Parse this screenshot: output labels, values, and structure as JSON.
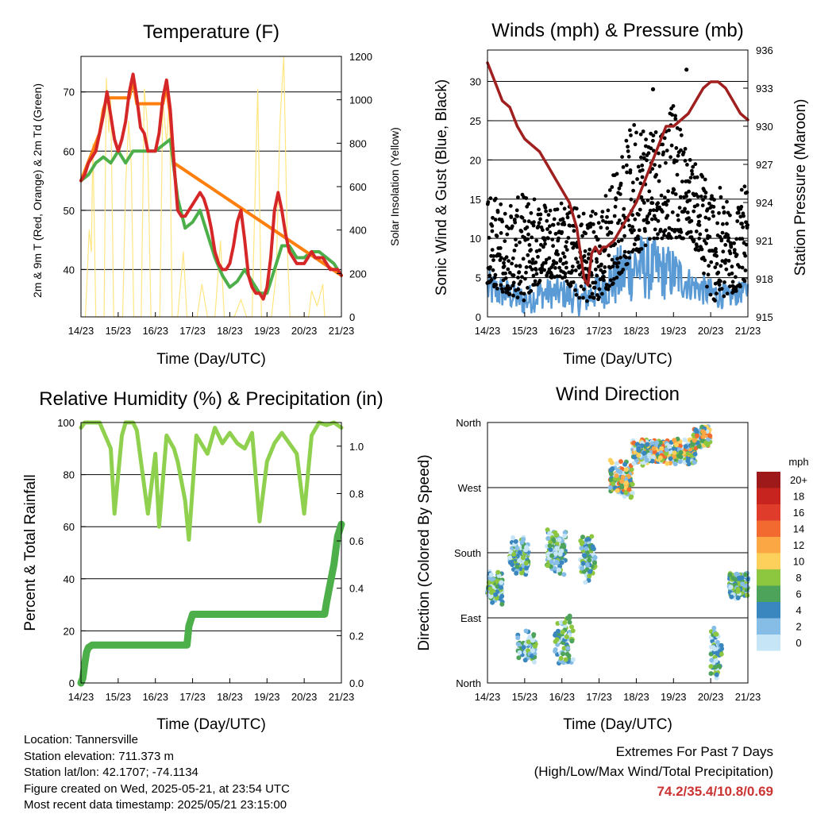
{
  "chart_data": [
    {
      "type": "line",
      "title": "Temperature (F)",
      "xlabel": "Time (Day/UTC)",
      "ylabel": "2m & 9m T (Red, Orange) & 2m Td (Green)",
      "y2label": "Solar Insolation (Yellow)",
      "x_ticks": [
        "14/23",
        "15/23",
        "16/23",
        "17/23",
        "18/23",
        "19/23",
        "20/23",
        "21/23"
      ],
      "ylim": [
        32,
        76
      ],
      "y_ticks": [
        40,
        50,
        60,
        70
      ],
      "y2lim": [
        0,
        1200
      ],
      "y2_ticks": [
        0,
        200,
        400,
        600,
        800,
        1000,
        1200
      ],
      "grid": "horizontal",
      "series": [
        {
          "key": "t2m",
          "color": "#d62728",
          "x": [
            0,
            0.1,
            0.2,
            0.3,
            0.4,
            0.5,
            0.6,
            0.7,
            0.8,
            0.9,
            1,
            1.1,
            1.2,
            1.3,
            1.4,
            1.5,
            1.6,
            1.7,
            1.8,
            1.9,
            2,
            2.1,
            2.2,
            2.3,
            2.4,
            2.5,
            2.6,
            2.7,
            2.8,
            2.9,
            3,
            3.1,
            3.2,
            3.3,
            3.4,
            3.5,
            3.6,
            3.7,
            3.8,
            3.9,
            4,
            4.1,
            4.2,
            4.3,
            4.4,
            4.5,
            4.6,
            4.7,
            4.8,
            4.9,
            5,
            5.1,
            5.2,
            5.3,
            5.4,
            5.5,
            5.6,
            5.7,
            5.8,
            5.9,
            6,
            6.1,
            6.2,
            6.3,
            6.4,
            6.5,
            6.6,
            6.7,
            6.8,
            6.9,
            7
          ],
          "y": [
            55,
            56,
            58,
            59,
            60,
            63,
            66,
            70,
            66,
            62,
            60,
            62,
            65,
            70,
            73,
            69,
            64,
            63,
            60,
            60,
            60,
            63,
            69,
            72,
            67,
            58,
            50,
            49,
            49,
            50,
            51,
            52,
            53,
            52,
            50,
            47,
            43,
            41,
            40,
            40,
            41,
            44,
            48,
            50,
            45,
            39,
            37,
            36,
            36,
            35,
            37,
            42,
            50,
            53,
            50,
            46,
            43,
            42,
            41,
            41,
            41,
            42,
            43,
            42,
            42,
            42,
            41,
            40,
            40,
            40,
            39
          ]
        },
        {
          "key": "t9m",
          "color": "#ff7f0e",
          "x": [
            0,
            0.5,
            0.6,
            0.7,
            1.3,
            1.4,
            1.5,
            2.2,
            2.3,
            2.4,
            2.5,
            7
          ],
          "y": [
            55,
            63,
            67,
            69,
            69,
            72,
            68,
            68,
            71,
            66,
            58,
            39
          ]
        },
        {
          "key": "td2m",
          "color": "#4daf4a",
          "x": [
            0,
            0.2,
            0.4,
            0.6,
            0.8,
            1,
            1.2,
            1.4,
            1.6,
            1.8,
            2,
            2.2,
            2.4,
            2.6,
            2.8,
            3,
            3.2,
            3.4,
            3.6,
            3.8,
            4,
            4.2,
            4.4,
            4.6,
            4.8,
            5,
            5.2,
            5.4,
            5.6,
            5.8,
            6,
            6.2,
            6.4,
            6.6,
            6.8,
            7
          ],
          "y": [
            55,
            56,
            58,
            59,
            58,
            60,
            58,
            60,
            60,
            60,
            60,
            61,
            62,
            52,
            47,
            48,
            50,
            46,
            42,
            39,
            37,
            38,
            40,
            38,
            36,
            36,
            40,
            44,
            44,
            42,
            42,
            43,
            43,
            42,
            41,
            39
          ]
        },
        {
          "key": "solar",
          "color": "#ffe680",
          "x": [
            0.12,
            0.22,
            0.28,
            0.32,
            0.4,
            0.62,
            0.68,
            0.75,
            0.8,
            0.88,
            1.12,
            1.2,
            1.28,
            1.35,
            1.42,
            1.62,
            1.7,
            1.78,
            1.88,
            2.12,
            2.2,
            2.3,
            2.38,
            2.45,
            2.6,
            2.75,
            2.85,
            3.12,
            3.25,
            3.4,
            3.6,
            3.75,
            3.85,
            4.12,
            4.3,
            4.45,
            4.6,
            4.75,
            4.85,
            5.12,
            5.25,
            5.35,
            5.45,
            5.55,
            5.62,
            6.12,
            6.2,
            6.35,
            6.5,
            6.55
          ],
          "y": [
            0,
            400,
            300,
            800,
            0,
            0,
            1100,
            850,
            1000,
            0,
            0,
            600,
            900,
            700,
            0,
            0,
            1050,
            900,
            0,
            0,
            1000,
            800,
            1000,
            0,
            0,
            300,
            0,
            0,
            150,
            0,
            0,
            350,
            0,
            0,
            80,
            0,
            0,
            1050,
            0,
            0,
            200,
            900,
            1200,
            300,
            0,
            0,
            120,
            50,
            150,
            0
          ]
        }
      ]
    },
    {
      "type": "scatter",
      "title": "Winds (mph) & Pressure (mb)",
      "xlabel": "Time (Day/UTC)",
      "ylabel": "Sonic Wind & Gust (Blue, Black)",
      "y2label": "Station Pressure (Maroon)",
      "x_ticks": [
        "14/23",
        "15/23",
        "16/23",
        "17/23",
        "18/23",
        "19/23",
        "20/23",
        "21/23"
      ],
      "ylim": [
        0,
        34
      ],
      "y_ticks": [
        0,
        5,
        10,
        15,
        20,
        25,
        30
      ],
      "y2lim": [
        915,
        936
      ],
      "y2_ticks": [
        915,
        918,
        921,
        924,
        927,
        930,
        933,
        936
      ],
      "grid": "horizontal",
      "series": [
        {
          "key": "pressure",
          "color": "#a02020",
          "x": [
            0,
            0.2,
            0.4,
            0.6,
            0.8,
            1,
            1.2,
            1.4,
            1.6,
            1.8,
            2,
            2.2,
            2.4,
            2.5,
            2.6,
            2.7,
            2.8,
            2.9,
            3,
            3.1,
            3.2,
            3.4,
            3.6,
            3.8,
            4,
            4.2,
            4.4,
            4.6,
            4.8,
            5,
            5.2,
            5.4,
            5.6,
            5.8,
            6,
            6.2,
            6.4,
            6.6,
            6.8,
            7
          ],
          "y": [
            935,
            933.5,
            932,
            931.5,
            930,
            929,
            928.5,
            928,
            927,
            926,
            925,
            924,
            922,
            920,
            918,
            917.5,
            920,
            920.5,
            920,
            920.5,
            920.5,
            921,
            922,
            923,
            924,
            925.5,
            927,
            928.5,
            930,
            930,
            930.5,
            931,
            932,
            933,
            933.5,
            933.5,
            933,
            932,
            931,
            930.5
          ]
        }
      ],
      "gust_envelope": {
        "x": [
          0,
          0.5,
          1,
          1.5,
          2,
          2.5,
          3,
          3.5,
          4,
          4.5,
          5,
          5.5,
          6,
          6.5,
          7
        ],
        "lo": [
          4,
          3,
          2,
          5,
          5,
          2,
          2,
          5,
          8,
          10,
          10,
          10,
          2,
          2,
          5
        ],
        "hi": [
          17,
          14,
          16,
          15,
          15,
          14,
          14,
          20,
          26,
          25,
          27,
          20,
          18,
          15,
          17
        ]
      },
      "sonic_envelope": {
        "x": [
          0,
          0.5,
          1,
          1.5,
          2,
          2.5,
          3,
          3.5,
          4,
          4.5,
          5,
          5.5,
          6,
          6.5,
          7
        ],
        "lo": [
          1,
          1,
          0,
          1,
          1,
          0,
          1,
          1,
          2,
          2,
          2,
          2,
          1,
          1,
          2
        ],
        "hi": [
          6,
          5,
          4,
          5,
          5,
          4,
          6,
          9,
          11,
          10,
          9,
          6,
          5,
          4,
          5
        ]
      },
      "outliers": [
        {
          "x": 4.45,
          "y": 29
        },
        {
          "x": 5.35,
          "y": 31.5
        }
      ]
    },
    {
      "type": "line",
      "title": "Relative Humidity (%) & Precipitation (in)",
      "xlabel": "Time (Day/UTC)",
      "ylabel": "Percent & Total Rainfall",
      "x_ticks": [
        "14/23",
        "15/23",
        "16/23",
        "17/23",
        "18/23",
        "19/23",
        "20/23",
        "21/23"
      ],
      "ylim": [
        0,
        100
      ],
      "y_ticks": [
        0,
        20,
        40,
        60,
        80,
        100
      ],
      "y2lim": [
        0.0,
        1.1
      ],
      "y2_ticks": [
        "0.0",
        "0.2",
        "0.4",
        "0.6",
        "0.8",
        "1.0"
      ],
      "grid": "horizontal",
      "series": [
        {
          "key": "rh",
          "color": "#8fd14f",
          "x": [
            0,
            0.1,
            0.3,
            0.5,
            0.8,
            0.9,
            1.1,
            1.2,
            1.4,
            1.5,
            1.8,
            2,
            2.1,
            2.3,
            2.5,
            2.6,
            2.8,
            2.9,
            3.1,
            3.4,
            3.6,
            3.8,
            4,
            4.2,
            4.4,
            4.6,
            4.8,
            5,
            5.2,
            5.4,
            5.6,
            5.8,
            6,
            6.2,
            6.4,
            6.6,
            6.8,
            7
          ],
          "y": [
            98,
            100,
            100,
            100,
            90,
            65,
            95,
            100,
            100,
            97,
            65,
            88,
            60,
            95,
            90,
            85,
            70,
            55,
            95,
            88,
            98,
            92,
            96,
            92,
            90,
            96,
            62,
            85,
            92,
            96,
            92,
            88,
            65,
            95,
            100,
            99,
            100,
            98
          ]
        },
        {
          "key": "precip",
          "color": "#4daf4a",
          "x": [
            0,
            0.05,
            0.1,
            0.15,
            0.2,
            0.3,
            2.85,
            2.9,
            3.0,
            6.55,
            6.6,
            6.7,
            6.8,
            6.9,
            7
          ],
          "y": [
            0,
            0.02,
            0.08,
            0.13,
            0.15,
            0.16,
            0.16,
            0.24,
            0.29,
            0.29,
            0.34,
            0.42,
            0.5,
            0.62,
            0.67
          ]
        }
      ]
    },
    {
      "type": "scatter",
      "title": "Wind Direction",
      "xlabel": "Time (Day/UTC)",
      "ylabel": "Direction (Colored By Speed)",
      "x_ticks": [
        "14/23",
        "15/23",
        "16/23",
        "17/23",
        "18/23",
        "19/23",
        "20/23",
        "21/23"
      ],
      "ylim": [
        0,
        360
      ],
      "y_ticks": [
        "North",
        "East",
        "South",
        "West",
        "North"
      ],
      "grid": "horizontal",
      "legend": {
        "title": "mph",
        "labels": [
          "20+",
          "18",
          "16",
          "14",
          "12",
          "10",
          "8",
          "6",
          "4",
          "2",
          "0"
        ],
        "colors": [
          "#9e1a1a",
          "#c8241f",
          "#e03c2c",
          "#f26a30",
          "#fba844",
          "#fdd05b",
          "#8dc63f",
          "#4ea35a",
          "#3a87bf",
          "#86bde6",
          "#c6e5f7"
        ]
      },
      "clusters": [
        {
          "x": 0,
          "x2": 0.4,
          "y": 130,
          "spread": 25,
          "n": 120
        },
        {
          "x": 0.6,
          "x2": 1.1,
          "y": 175,
          "spread": 30,
          "n": 140
        },
        {
          "x": 0.8,
          "x2": 1.3,
          "y": 50,
          "spread": 25,
          "n": 60
        },
        {
          "x": 1.6,
          "x2": 2.1,
          "y": 180,
          "spread": 35,
          "n": 140
        },
        {
          "x": 1.8,
          "x2": 2.3,
          "y": 60,
          "spread": 40,
          "n": 70
        },
        {
          "x": 2.5,
          "x2": 2.9,
          "y": 175,
          "spread": 40,
          "n": 80
        },
        {
          "x": 3.3,
          "x2": 3.9,
          "y": 280,
          "spread": 30,
          "n": 120
        },
        {
          "x": 3.9,
          "x2": 5.6,
          "y": 320,
          "spread": 20,
          "n": 400
        },
        {
          "x": 5.5,
          "x2": 6.0,
          "y": 340,
          "spread": 20,
          "n": 80
        },
        {
          "x": 6.0,
          "x2": 6.3,
          "y": 40,
          "spread": 40,
          "n": 60
        },
        {
          "x": 6.5,
          "x2": 7.0,
          "y": 135,
          "spread": 20,
          "n": 160
        }
      ]
    }
  ],
  "footer": {
    "location": "Location: Tannersville",
    "elevation": "Station elevation: 711.373 m",
    "latlon": "Station lat/lon: 42.1707; -74.1134",
    "created": "Figure created on Wed, 2025-05-21, at 23:54 UTC",
    "recent": "Most recent data timestamp: 2025/05/21 23:15:00"
  },
  "extremes": {
    "heading": "Extremes For Past 7 Days",
    "subheading": "(High/Low/Max Wind/Total Precipitation)",
    "values": "74.2/35.4/10.8/0.69"
  }
}
